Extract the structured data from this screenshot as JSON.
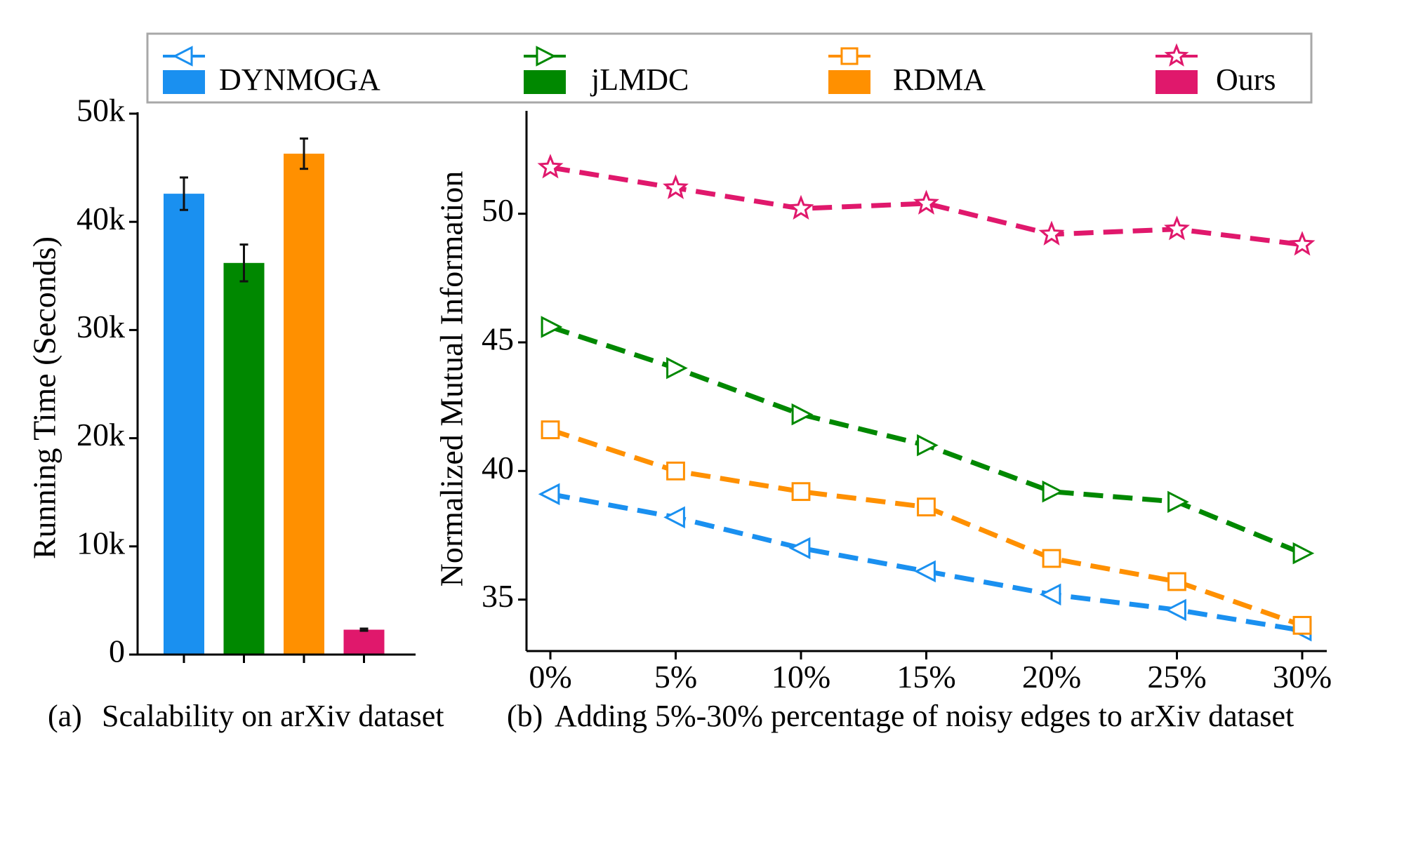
{
  "legend": {
    "items": [
      {
        "name": "DYNMOGA",
        "color": "#1a90f0",
        "marker": "triangle-left-icon"
      },
      {
        "name": "jLMDC",
        "color": "#008800",
        "marker": "triangle-right-icon"
      },
      {
        "name": "RDMA",
        "color": "#ff9000",
        "marker": "square-icon"
      },
      {
        "name": "Ours",
        "color": "#e0186c",
        "marker": "star-icon"
      }
    ]
  },
  "chart_data": [
    {
      "type": "bar",
      "caption_tag": "(a)",
      "caption": "Scalability on arXiv dataset",
      "ylabel": "Running Time (Seconds)",
      "xlabel": "",
      "ylim": [
        0,
        50000
      ],
      "yticks": [
        0,
        10000,
        20000,
        30000,
        40000,
        50000
      ],
      "ytick_labels": [
        "0",
        "10k",
        "20k",
        "30k",
        "40k",
        "50k"
      ],
      "categories": [
        "DYNMOGA",
        "jLMDC",
        "RDMA",
        "Ours"
      ],
      "values": [
        42600,
        36200,
        46300,
        2300
      ],
      "errors": [
        1500,
        1700,
        1400,
        100
      ],
      "colors": [
        "#1a90f0",
        "#008800",
        "#ff9000",
        "#e0186c"
      ]
    },
    {
      "type": "line",
      "caption_tag": "(b)",
      "caption": "Adding 5%-30% percentage of noisy edges to arXiv dataset",
      "ylabel": "Normalized Mutual Information",
      "xlabel": "",
      "x": [
        "0%",
        "5%",
        "10%",
        "15%",
        "20%",
        "25%",
        "30%"
      ],
      "ylim": [
        33,
        54
      ],
      "yticks": [
        35,
        40,
        45,
        50
      ],
      "series": [
        {
          "name": "DYNMOGA",
          "color": "#1a90f0",
          "marker": "triangle-left",
          "values": [
            39.1,
            38.2,
            37.0,
            36.1,
            35.2,
            34.6,
            33.8
          ]
        },
        {
          "name": "jLMDC",
          "color": "#008800",
          "marker": "triangle-right",
          "values": [
            45.6,
            44.0,
            42.2,
            41.0,
            39.2,
            38.8,
            36.8
          ]
        },
        {
          "name": "RDMA",
          "color": "#ff9000",
          "marker": "square",
          "values": [
            41.6,
            40.0,
            39.2,
            38.6,
            36.6,
            35.7,
            34.0
          ]
        },
        {
          "name": "Ours",
          "color": "#e0186c",
          "marker": "star",
          "values": [
            51.8,
            51.0,
            50.2,
            50.4,
            49.2,
            49.4,
            48.8
          ]
        }
      ]
    }
  ]
}
